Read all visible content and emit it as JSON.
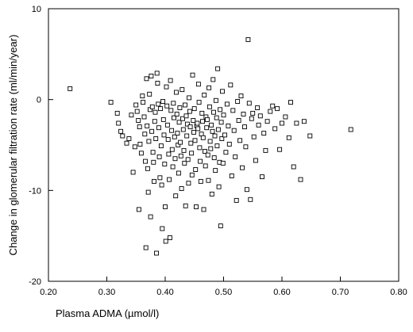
{
  "chart_data": {
    "type": "scatter",
    "xlabel": "Plasma ADMA (µmol/l)",
    "ylabel": "Change in glomerular filtration rate (ml/min/year)",
    "xlim": [
      0.2,
      0.8
    ],
    "ylim": [
      -20,
      10
    ],
    "x_ticks": [
      "0.20",
      "0.30",
      "0.40",
      "0.50",
      "0.60",
      "0.70",
      "0.80"
    ],
    "y_ticks": [
      "10",
      "0",
      "-10",
      "-20"
    ],
    "grid": false,
    "marker": "open-square",
    "series": [
      {
        "points": [
          [
            0.237,
            1.2
          ],
          [
            0.307,
            -0.3
          ],
          [
            0.318,
            -1.5
          ],
          [
            0.32,
            -2.6
          ],
          [
            0.324,
            -3.5
          ],
          [
            0.327,
            -4.0
          ],
          [
            0.334,
            -4.8
          ],
          [
            0.338,
            -4.3
          ],
          [
            0.342,
            -1.7
          ],
          [
            0.345,
            -8.0
          ],
          [
            0.348,
            -5.2
          ],
          [
            0.35,
            -0.6
          ],
          [
            0.352,
            -1.3
          ],
          [
            0.354,
            -2.3
          ],
          [
            0.356,
            -3.0
          ],
          [
            0.355,
            -12.1
          ],
          [
            0.357,
            -4.9
          ],
          [
            0.359,
            -5.9
          ],
          [
            0.361,
            0.4
          ],
          [
            0.362,
            -0.3
          ],
          [
            0.364,
            -1.9
          ],
          [
            0.365,
            -3.8
          ],
          [
            0.366,
            -6.8
          ],
          [
            0.367,
            -16.3
          ],
          [
            0.368,
            2.3
          ],
          [
            0.369,
            -2.9
          ],
          [
            0.37,
            -7.6
          ],
          [
            0.371,
            -10.2
          ],
          [
            0.372,
            -4.6
          ],
          [
            0.373,
            0.6
          ],
          [
            0.374,
            -1.1
          ],
          [
            0.375,
            -12.9
          ],
          [
            0.376,
            2.6
          ],
          [
            0.377,
            -3.5
          ],
          [
            0.378,
            -0.8
          ],
          [
            0.379,
            -5.8
          ],
          [
            0.38,
            -6.9
          ],
          [
            0.381,
            -9.0
          ],
          [
            0.382,
            -2.4
          ],
          [
            0.383,
            -1.4
          ],
          [
            0.384,
            -4.3
          ],
          [
            0.385,
            -16.9
          ],
          [
            0.386,
            2.9
          ],
          [
            0.387,
            1.8
          ],
          [
            0.388,
            -0.5
          ],
          [
            0.389,
            -3.1
          ],
          [
            0.39,
            -6.3
          ],
          [
            0.391,
            -8.6
          ],
          [
            0.392,
            -1.0
          ],
          [
            0.393,
            -5.1
          ],
          [
            0.394,
            -9.4
          ],
          [
            0.395,
            -14.2
          ],
          [
            0.396,
            -0.2
          ],
          [
            0.397,
            -2.2
          ],
          [
            0.398,
            -3.9
          ],
          [
            0.399,
            -7.1
          ],
          [
            0.4,
            -11.8
          ],
          [
            0.401,
            -15.6
          ],
          [
            0.402,
            1.4
          ],
          [
            0.403,
            -0.7
          ],
          [
            0.404,
            -2.8
          ],
          [
            0.405,
            -4.4
          ],
          [
            0.406,
            -6.0
          ],
          [
            0.407,
            -8.8
          ],
          [
            0.408,
            -15.2
          ],
          [
            0.409,
            2.1
          ],
          [
            0.41,
            -1.2
          ],
          [
            0.411,
            -3.4
          ],
          [
            0.412,
            -5.5
          ],
          [
            0.413,
            -7.4
          ],
          [
            0.414,
            -0.4
          ],
          [
            0.415,
            -2.0
          ],
          [
            0.416,
            -4.1
          ],
          [
            0.417,
            -6.5
          ],
          [
            0.418,
            -10.6
          ],
          [
            0.419,
            0.8
          ],
          [
            0.42,
            -1.6
          ],
          [
            0.421,
            -3.7
          ],
          [
            0.422,
            -5.0
          ],
          [
            0.423,
            -8.1
          ],
          [
            0.424,
            -2.5
          ],
          [
            0.425,
            -0.9
          ],
          [
            0.426,
            -4.7
          ],
          [
            0.427,
            -6.2
          ],
          [
            0.428,
            -9.8
          ],
          [
            0.429,
            1.1
          ],
          [
            0.43,
            -2.1
          ],
          [
            0.431,
            -3.3
          ],
          [
            0.432,
            -5.6
          ],
          [
            0.433,
            -7.0
          ],
          [
            0.434,
            -0.6
          ],
          [
            0.435,
            -11.7
          ],
          [
            0.436,
            -1.8
          ],
          [
            0.437,
            -4.0
          ],
          [
            0.438,
            -2.7
          ],
          [
            0.439,
            -6.6
          ],
          [
            0.44,
            -9.2
          ],
          [
            0.441,
            0.2
          ],
          [
            0.442,
            -1.3
          ],
          [
            0.443,
            -3.0
          ],
          [
            0.444,
            -4.8
          ],
          [
            0.445,
            -5.9
          ],
          [
            0.446,
            -8.3
          ],
          [
            0.447,
            2.7
          ],
          [
            0.448,
            -2.3
          ],
          [
            0.449,
            -3.6
          ],
          [
            0.45,
            -1.0
          ],
          [
            0.451,
            -4.5
          ],
          [
            0.452,
            -7.7
          ],
          [
            0.453,
            -11.8
          ],
          [
            0.454,
            -2.9
          ],
          [
            0.455,
            -2.6
          ],
          [
            0.456,
            -3.2
          ],
          [
            0.457,
            1.7
          ],
          [
            0.458,
            -0.3
          ],
          [
            0.459,
            -5.3
          ],
          [
            0.46,
            -6.8
          ],
          [
            0.461,
            -9.0
          ],
          [
            0.462,
            -3.8
          ],
          [
            0.463,
            -1.5
          ],
          [
            0.464,
            -2.4
          ],
          [
            0.465,
            -4.2
          ],
          [
            0.466,
            -12.1
          ],
          [
            0.467,
            0.5
          ],
          [
            0.468,
            -5.7
          ],
          [
            0.469,
            -7.3
          ],
          [
            0.47,
            -1.9
          ],
          [
            0.471,
            -3.1
          ],
          [
            0.472,
            -2.2
          ],
          [
            0.473,
            -6.1
          ],
          [
            0.474,
            -8.9
          ],
          [
            0.475,
            1.3
          ],
          [
            0.476,
            -0.8
          ],
          [
            0.477,
            -4.6
          ],
          [
            0.478,
            -5.4
          ],
          [
            0.479,
            -2.8
          ],
          [
            0.48,
            -10.4
          ],
          [
            0.481,
            -3.5
          ],
          [
            0.482,
            2.2
          ],
          [
            0.483,
            -1.4
          ],
          [
            0.484,
            -6.4
          ],
          [
            0.485,
            -4.0
          ],
          [
            0.486,
            -7.8
          ],
          [
            0.487,
            -0.1
          ],
          [
            0.488,
            -2.0
          ],
          [
            0.489,
            -5.1
          ],
          [
            0.49,
            3.4
          ],
          [
            0.491,
            -3.3
          ],
          [
            0.492,
            -9.6
          ],
          [
            0.493,
            -6.9
          ],
          [
            0.494,
            -1.1
          ],
          [
            0.495,
            -13.9
          ],
          [
            0.496,
            -2.5
          ],
          [
            0.497,
            -4.3
          ],
          [
            0.498,
            0.9
          ],
          [
            0.499,
            -7.0
          ],
          [
            0.5,
            -1.7
          ],
          [
            0.502,
            -3.9
          ],
          [
            0.504,
            -5.8
          ],
          [
            0.506,
            -0.5
          ],
          [
            0.508,
            -2.9
          ],
          [
            0.51,
            -4.9
          ],
          [
            0.512,
            1.6
          ],
          [
            0.514,
            -8.4
          ],
          [
            0.516,
            -1.2
          ],
          [
            0.518,
            -3.4
          ],
          [
            0.52,
            -6.3
          ],
          [
            0.522,
            -11.1
          ],
          [
            0.524,
            -0.2
          ],
          [
            0.526,
            -2.3
          ],
          [
            0.528,
            -4.5
          ],
          [
            0.53,
            0.4
          ],
          [
            0.532,
            -7.5
          ],
          [
            0.534,
            -1.6
          ],
          [
            0.536,
            -3.0
          ],
          [
            0.538,
            -5.2
          ],
          [
            0.54,
            -9.9
          ],
          [
            0.542,
            6.6
          ],
          [
            0.544,
            -0.4
          ],
          [
            0.546,
            -11.0
          ],
          [
            0.548,
            -2.1
          ],
          [
            0.55,
            -1.5
          ],
          [
            0.552,
            -4.1
          ],
          [
            0.555,
            -6.7
          ],
          [
            0.558,
            -0.9
          ],
          [
            0.56,
            -2.8
          ],
          [
            0.563,
            -1.8
          ],
          [
            0.566,
            -8.5
          ],
          [
            0.569,
            -3.7
          ],
          [
            0.572,
            -5.6
          ],
          [
            0.575,
            -2.4
          ],
          [
            0.58,
            -1.3
          ],
          [
            0.584,
            -0.7
          ],
          [
            0.588,
            -3.2
          ],
          [
            0.592,
            -1.0
          ],
          [
            0.596,
            -5.5
          ],
          [
            0.6,
            -2.6
          ],
          [
            0.606,
            -1.9
          ],
          [
            0.612,
            -4.2
          ],
          [
            0.615,
            -0.3
          ],
          [
            0.62,
            -7.4
          ],
          [
            0.625,
            -2.6
          ],
          [
            0.632,
            -8.8
          ],
          [
            0.638,
            -2.4
          ],
          [
            0.648,
            -4.0
          ],
          [
            0.718,
            -3.3
          ]
        ]
      }
    ]
  }
}
